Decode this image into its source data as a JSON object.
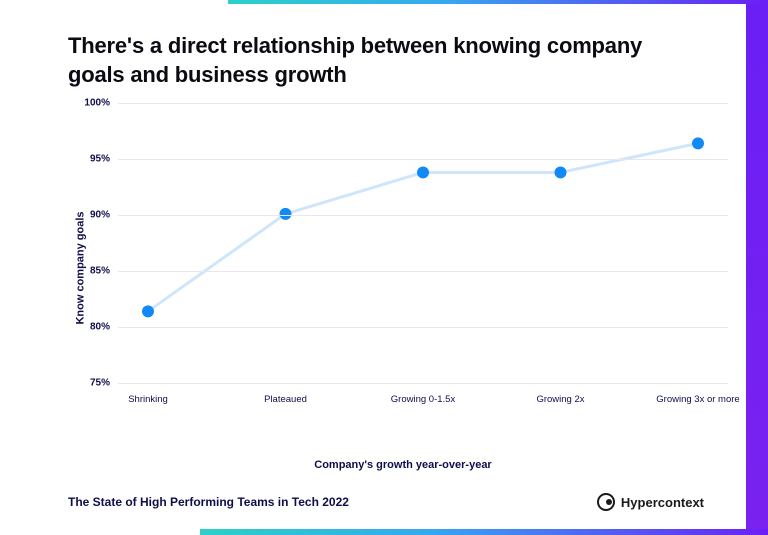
{
  "title": "There's a direct relationship between knowing company goals and business growth",
  "chart": {
    "type": "line",
    "y_label": "Know company goals",
    "x_label": "Company's growth year-over-year",
    "y_min": 75,
    "y_max": 100,
    "y_ticks": [
      75,
      80,
      85,
      90,
      95,
      100
    ],
    "y_tick_suffix": "%",
    "categories": [
      "Shrinking",
      "Plateaued",
      "Growing 0-1.5x",
      "Growing 2x",
      "Growing 3x or more"
    ],
    "values": [
      81.4,
      90.1,
      93.8,
      93.8,
      96.4
    ],
    "line_color": "#cfe5fb",
    "line_width": 3,
    "marker_color": "#118af7",
    "marker_radius": 6,
    "grid_color": "#e8e8ec",
    "background_color": "#ffffff",
    "axis_label_color": "#0e0e4a",
    "tick_font_size": 10,
    "axis_label_font_size": 11,
    "axis_label_font_weight": 700
  },
  "footer": {
    "text": "The State of High Performing Teams in Tech 2022",
    "brand": "Hypercontext"
  },
  "decor": {
    "right_bar_color_top": "#6a1ff5",
    "right_bar_color_bottom": "#7a22f0",
    "strip_gradient_start": "#2bd1c9",
    "strip_gradient_mid": "#36a8ef",
    "strip_gradient_end": "#6a1ff5"
  }
}
